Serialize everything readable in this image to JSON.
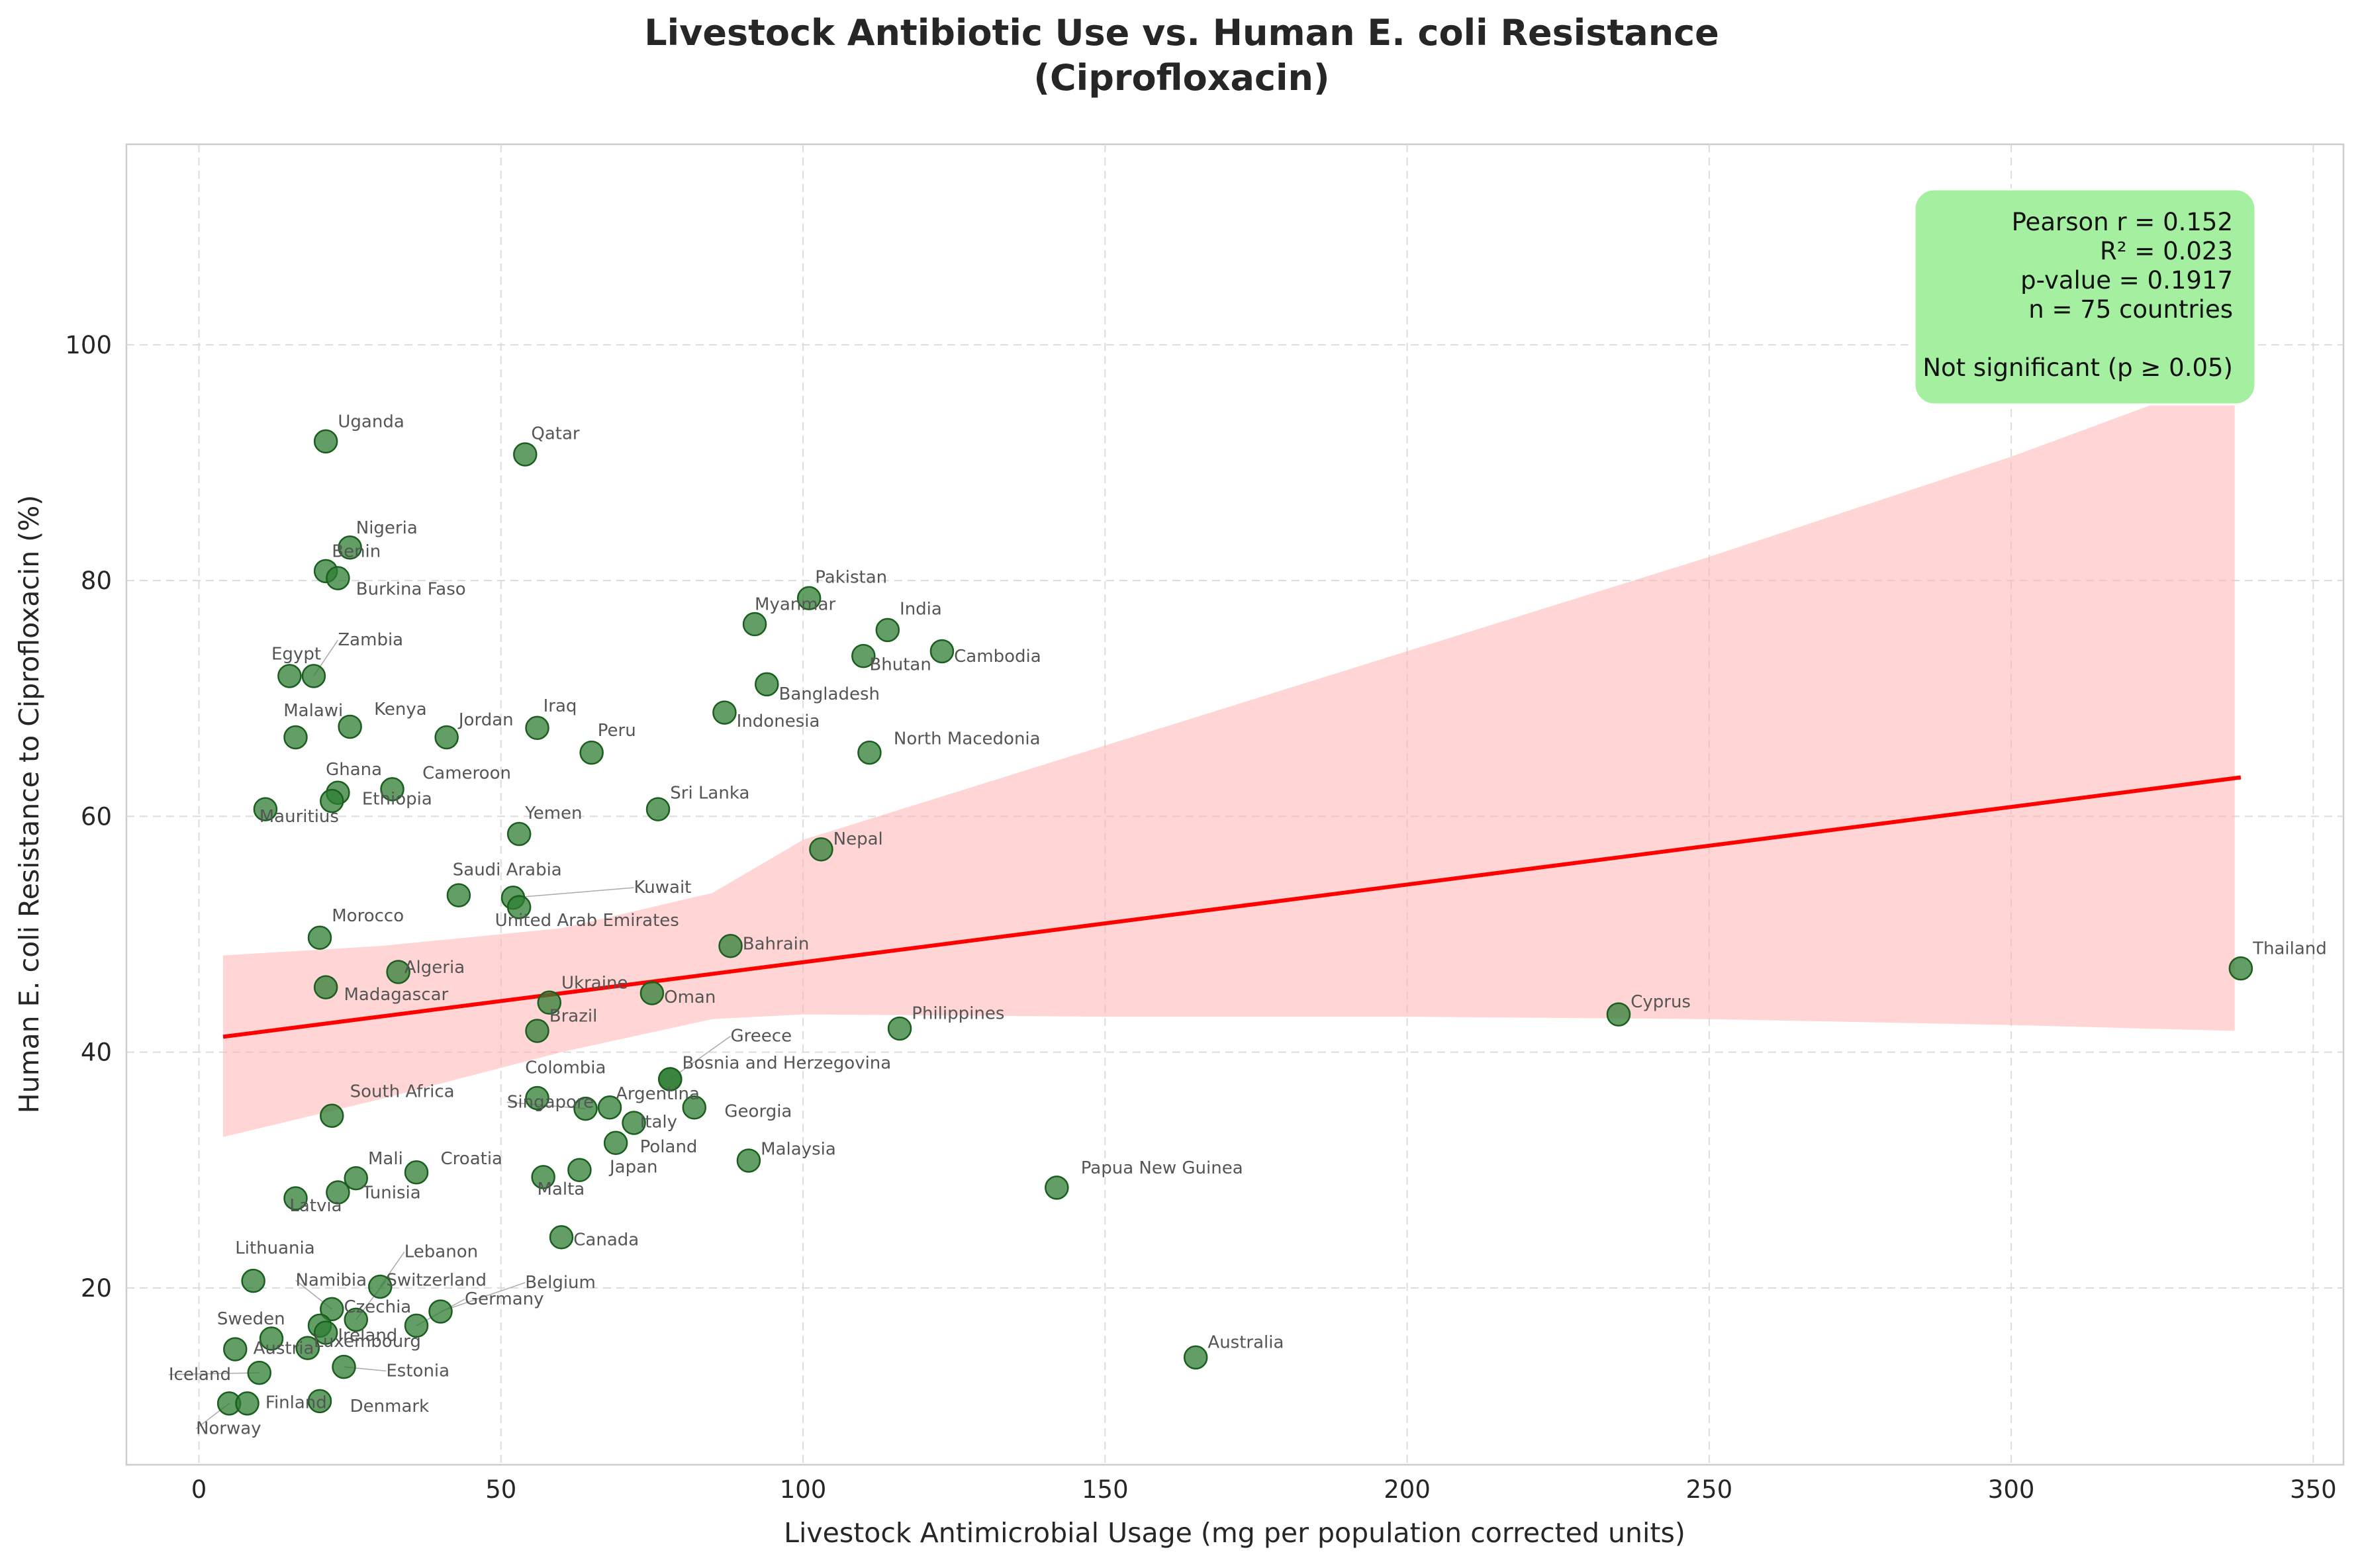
{
  "chart_data": {
    "type": "scatter",
    "title_lines": [
      "Livestock Antibiotic Use vs. Human E. coli Resistance",
      "(Ciprofloxacin)"
    ],
    "xlabel": "Livestock Antimicrobial Usage (mg per population corrected units)",
    "ylabel": "Human E. coli Resistance to Ciprofloxacin (%)",
    "xlim": [
      -12,
      355
    ],
    "ylim": [
      5,
      117
    ],
    "xticks": [
      0,
      50,
      100,
      150,
      200,
      250,
      300,
      350
    ],
    "yticks": [
      20,
      40,
      60,
      80,
      100
    ],
    "grid": true,
    "colors": {
      "point": "#2e7d32",
      "point_edge": "#1b5e20",
      "regression_line": "#ff0000",
      "confidence_band": "#ffb3b3",
      "stats_box": "#a4f0a0",
      "label_text": "#555555",
      "leader_line": "#aaaaaa",
      "grid": "#dcdcdc"
    },
    "regression": {
      "x": [
        4,
        338
      ],
      "y": [
        41.3,
        63.3
      ],
      "ci_x": [
        4,
        30,
        60,
        85,
        100,
        150,
        200,
        250,
        300,
        337
      ],
      "ci_upper": [
        48.2,
        49.0,
        50.5,
        53.5,
        58.0,
        66.0,
        74.0,
        82.0,
        90.5,
        97.5
      ],
      "ci_lower": [
        32.8,
        36.0,
        40.0,
        42.8,
        43.2,
        43.0,
        43.0,
        42.8,
        42.3,
        41.8
      ]
    },
    "stats_lines": [
      "Pearson r = 0.152",
      "R² = 0.023",
      "p-value = 0.1917",
      "n = 75 countries",
      "",
      "Not significant (p ≥ 0.05)"
    ],
    "points": [
      {
        "label": "Uganda",
        "x": 21,
        "y": 91.8,
        "lx": 23,
        "ly": 93
      },
      {
        "label": "Qatar",
        "x": 54,
        "y": 90.7,
        "lx": 55,
        "ly": 92
      },
      {
        "label": "Nigeria",
        "x": 25,
        "y": 82.8,
        "lx": 26,
        "ly": 84
      },
      {
        "label": "Benin",
        "x": 21,
        "y": 80.8,
        "lx": 22,
        "ly": 82
      },
      {
        "label": "Burkina Faso",
        "x": 23,
        "y": 80.2,
        "lx": 26,
        "ly": 78.8
      },
      {
        "label": "Pakistan",
        "x": 101,
        "y": 78.5,
        "lx": 102,
        "ly": 79.8
      },
      {
        "label": "Myanmar",
        "x": 92,
        "y": 76.3,
        "lx": 92,
        "ly": 77.5
      },
      {
        "label": "India",
        "x": 114,
        "y": 75.8,
        "lx": 116,
        "ly": 77.1
      },
      {
        "label": "Bhutan",
        "x": 110,
        "y": 73.6,
        "lx": 111,
        "ly": 72.4
      },
      {
        "label": "Cambodia",
        "x": 123,
        "y": 74.0,
        "lx": 125,
        "ly": 73.1
      },
      {
        "label": "Egypt",
        "x": 15,
        "y": 71.9,
        "lx": 12,
        "ly": 73.3
      },
      {
        "label": "Zambia",
        "x": 19,
        "y": 71.9,
        "lx": 23,
        "ly": 74.5
      },
      {
        "label": "Bangladesh",
        "x": 94,
        "y": 71.2,
        "lx": 96,
        "ly": 69.9
      },
      {
        "label": "Indonesia",
        "x": 87,
        "y": 68.8,
        "lx": 89,
        "ly": 67.6
      },
      {
        "label": "Malawi",
        "x": 16,
        "y": 66.7,
        "lx": 14,
        "ly": 68.5
      },
      {
        "label": "Kenya",
        "x": 25,
        "y": 67.6,
        "lx": 29,
        "ly": 68.6
      },
      {
        "label": "Jordan",
        "x": 41,
        "y": 66.7,
        "lx": 43,
        "ly": 67.7
      },
      {
        "label": "Iraq",
        "x": 56,
        "y": 67.5,
        "lx": 57,
        "ly": 68.9
      },
      {
        "label": "Peru",
        "x": 65,
        "y": 65.4,
        "lx": 66,
        "ly": 66.8
      },
      {
        "label": "North Macedonia",
        "x": 111,
        "y": 65.4,
        "lx": 115,
        "ly": 66.1
      },
      {
        "label": "Ghana",
        "x": 23,
        "y": 62.0,
        "lx": 21,
        "ly": 63.5
      },
      {
        "label": "Cameroon",
        "x": 32,
        "y": 62.3,
        "lx": 37,
        "ly": 63.2
      },
      {
        "label": "Ethiopia",
        "x": 22,
        "y": 61.3,
        "lx": 27,
        "ly": 61.0
      },
      {
        "label": "Mauritius",
        "x": 11,
        "y": 60.6,
        "lx": 10,
        "ly": 59.5
      },
      {
        "label": "Sri Lanka",
        "x": 76,
        "y": 60.6,
        "lx": 78,
        "ly": 61.5
      },
      {
        "label": "Yemen",
        "x": 53,
        "y": 58.5,
        "lx": 54,
        "ly": 59.8
      },
      {
        "label": "Nepal",
        "x": 103,
        "y": 57.2,
        "lx": 105,
        "ly": 57.6
      },
      {
        "label": "Saudi Arabia",
        "x": 43,
        "y": 53.3,
        "lx": 42,
        "ly": 55.0
      },
      {
        "label": "Kuwait",
        "x": 52,
        "y": 53.1,
        "lx": 72,
        "ly": 53.5
      },
      {
        "label": "United Arab Emirates",
        "x": 53,
        "y": 52.3,
        "lx": 49,
        "ly": 50.7
      },
      {
        "label": "Morocco",
        "x": 20,
        "y": 49.7,
        "lx": 22,
        "ly": 51.1
      },
      {
        "label": "Bahrain",
        "x": 88,
        "y": 49.0,
        "lx": 90,
        "ly": 48.7
      },
      {
        "label": "Algeria",
        "x": 33,
        "y": 46.8,
        "lx": 34,
        "ly": 46.7
      },
      {
        "label": "Madagascar",
        "x": 21,
        "y": 45.5,
        "lx": 24,
        "ly": 44.4
      },
      {
        "label": "Thailand",
        "x": 338,
        "y": 47.1,
        "lx": 340,
        "ly": 48.3
      },
      {
        "label": "Ukraine",
        "x": 58,
        "y": 44.2,
        "lx": 60,
        "ly": 45.4
      },
      {
        "label": "Oman",
        "x": 75,
        "y": 45.0,
        "lx": 77,
        "ly": 44.2
      },
      {
        "label": "Cyprus",
        "x": 235,
        "y": 43.2,
        "lx": 237,
        "ly": 43.8
      },
      {
        "label": "Brazil",
        "x": 56,
        "y": 41.8,
        "lx": 58,
        "ly": 42.6
      },
      {
        "label": "Philippines",
        "x": 116,
        "y": 42.0,
        "lx": 118,
        "ly": 42.8
      },
      {
        "label": "Greece",
        "x": 78,
        "y": 37.7,
        "lx": 88,
        "ly": 40.9
      },
      {
        "label": "Bosnia and Herzegovina",
        "x": 78,
        "y": 37.7,
        "lx": 80,
        "ly": 38.6
      },
      {
        "label": "Colombia",
        "x": 56,
        "y": 36.1,
        "lx": 54,
        "ly": 38.2
      },
      {
        "label": "Argentina",
        "x": 68,
        "y": 35.3,
        "lx": 69,
        "ly": 36.0
      },
      {
        "label": "Singapore",
        "x": 64,
        "y": 35.2,
        "lx": 51,
        "ly": 35.3
      },
      {
        "label": "Georgia",
        "x": 82,
        "y": 35.3,
        "lx": 87,
        "ly": 34.5
      },
      {
        "label": "Italy",
        "x": 72,
        "y": 34.0,
        "lx": 73,
        "ly": 33.6
      },
      {
        "label": "South Africa",
        "x": 22,
        "y": 34.6,
        "lx": 25,
        "ly": 36.2
      },
      {
        "label": "Poland",
        "x": 69,
        "y": 32.3,
        "lx": 73,
        "ly": 31.5
      },
      {
        "label": "Malaysia",
        "x": 91,
        "y": 30.8,
        "lx": 93,
        "ly": 31.3
      },
      {
        "label": "Japan",
        "x": 63,
        "y": 30.0,
        "lx": 68,
        "ly": 29.8
      },
      {
        "label": "Croatia",
        "x": 36,
        "y": 29.8,
        "lx": 40,
        "ly": 30.5
      },
      {
        "label": "Mali",
        "x": 26,
        "y": 29.3,
        "lx": 28,
        "ly": 30.5
      },
      {
        "label": "Malta",
        "x": 57,
        "y": 29.4,
        "lx": 56,
        "ly": 27.9
      },
      {
        "label": "Papua New Guinea",
        "x": 142,
        "y": 28.5,
        "lx": 146,
        "ly": 29.7
      },
      {
        "label": "Tunisia",
        "x": 23,
        "y": 28.1,
        "lx": 27,
        "ly": 27.6
      },
      {
        "label": "Latvia",
        "x": 16,
        "y": 27.6,
        "lx": 15,
        "ly": 26.5
      },
      {
        "label": "Canada",
        "x": 60,
        "y": 24.3,
        "lx": 62,
        "ly": 23.6
      },
      {
        "label": "Lithuania",
        "x": 9,
        "y": 20.6,
        "lx": 6,
        "ly": 22.9
      },
      {
        "label": "Lebanon",
        "x": 30,
        "y": 20.1,
        "lx": 34,
        "ly": 22.6
      },
      {
        "label": "Namibia",
        "x": 22,
        "y": 18.2,
        "lx": 16,
        "ly": 20.2
      },
      {
        "label": "Switzerland",
        "x": 26,
        "y": 17.3,
        "lx": 31,
        "ly": 20.2
      },
      {
        "label": "Belgium",
        "x": 40,
        "y": 18.0,
        "lx": 54,
        "ly": 20.0
      },
      {
        "label": "Germany",
        "x": 36,
        "y": 16.8,
        "lx": 44,
        "ly": 18.6
      },
      {
        "label": "Czechia",
        "x": 20,
        "y": 16.8,
        "lx": 24,
        "ly": 17.9
      },
      {
        "label": "Sweden",
        "x": 6,
        "y": 14.8,
        "lx": 3,
        "ly": 16.9
      },
      {
        "label": "Ireland",
        "x": 21,
        "y": 16.2,
        "lx": 23,
        "ly": 15.5
      },
      {
        "label": "Austria",
        "x": 12,
        "y": 15.7,
        "lx": 9,
        "ly": 14.4
      },
      {
        "label": "Luxembourg",
        "x": 18,
        "y": 14.9,
        "lx": 19,
        "ly": 15.0
      },
      {
        "label": "Estonia",
        "x": 24,
        "y": 13.3,
        "lx": 31,
        "ly": 12.5
      },
      {
        "label": "Iceland",
        "x": 10,
        "y": 12.8,
        "lx": -5,
        "ly": 12.2
      },
      {
        "label": "Australia",
        "x": 165,
        "y": 14.1,
        "lx": 167,
        "ly": 14.9
      },
      {
        "label": "Norway",
        "x": 5,
        "y": 10.2,
        "lx": -0.5,
        "ly": 7.6
      },
      {
        "label": "Finland",
        "x": 8,
        "y": 10.2,
        "lx": 11,
        "ly": 9.8
      },
      {
        "label": "Denmark",
        "x": 20,
        "y": 10.4,
        "lx": 25,
        "ly": 9.5
      }
    ]
  }
}
